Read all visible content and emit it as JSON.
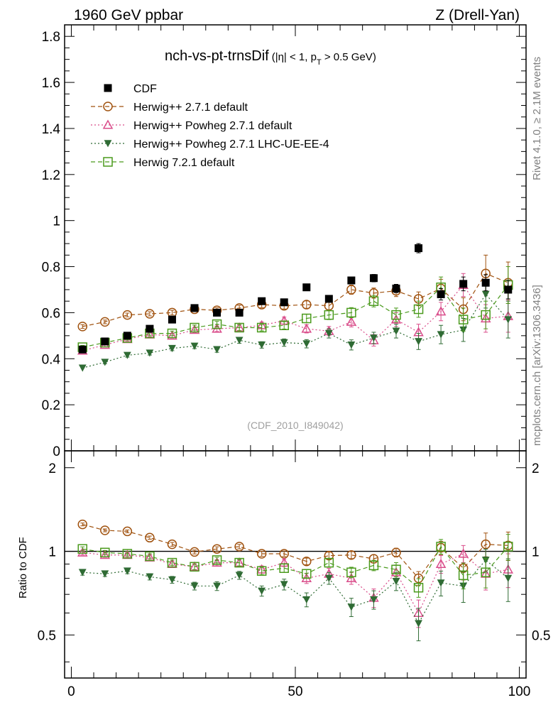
{
  "header": {
    "left": "1960 GeV ppbar",
    "right": "Z (Drell-Yan)"
  },
  "side_labels": {
    "rivet": "Rivet 4.1.0, ≥ 2.1M events",
    "mcplots": "mcplots.cern.ch [arXiv:1306.3436]"
  },
  "chart_data": {
    "type": "scatter",
    "title_main": "nch-vs-pt-trnsDif",
    "title_cut_a": "(|η| < 1, p",
    "title_cut_sub": "T",
    "title_cut_b": " > 0.5 GeV)",
    "watermark": "(CDF_2010_I849042)",
    "xlabel": "",
    "ylabel_main": "",
    "ylabel_ratio": "Ratio to CDF",
    "xlim": [
      -1.5,
      101.5
    ],
    "ylim_main": [
      0,
      1.85
    ],
    "ylim_ratio": [
      0.35,
      2.3
    ],
    "x_ticks": [
      "0",
      "50",
      "100"
    ],
    "y_ticks_main": [
      "0",
      "0.2",
      "0.4",
      "0.6",
      "0.8",
      "1",
      "1.2",
      "1.4",
      "1.6",
      "1.8"
    ],
    "y_ticks_ratio": [
      "0.5",
      "1",
      "2"
    ],
    "x": [
      2.5,
      7.5,
      12.5,
      17.5,
      22.5,
      27.5,
      32.5,
      37.5,
      42.5,
      47.5,
      52.5,
      57.5,
      62.5,
      67.5,
      72.5,
      77.5,
      82.5,
      87.5,
      92.5,
      97.5
    ],
    "series": [
      {
        "name": "CDF",
        "color": "#000000",
        "marker": "square-filled",
        "line": "none",
        "values": [
          0.44,
          0.475,
          0.5,
          0.53,
          0.57,
          0.62,
          0.6,
          0.6,
          0.65,
          0.645,
          0.71,
          0.66,
          0.74,
          0.75,
          0.705,
          0.88,
          0.68,
          0.725,
          0.73,
          0.7
        ],
        "errors": [
          0.01,
          0.01,
          0.01,
          0.01,
          0.01,
          0.01,
          0.01,
          0.01,
          0.012,
          0.012,
          0.013,
          0.014,
          0.015,
          0.016,
          0.018,
          0.02,
          0.025,
          0.03,
          0.035,
          0.04
        ],
        "ratio": [
          1,
          1,
          1,
          1,
          1,
          1,
          1,
          1,
          1,
          1,
          1,
          1,
          1,
          1,
          1,
          1,
          1,
          1,
          1,
          1
        ]
      },
      {
        "name": "Herwig++ 2.7.1 default",
        "color": "#a0520f",
        "marker": "circle-open",
        "line": "dashed",
        "values": [
          0.54,
          0.56,
          0.59,
          0.595,
          0.6,
          0.615,
          0.61,
          0.62,
          0.635,
          0.63,
          0.635,
          0.63,
          0.7,
          0.685,
          0.695,
          0.66,
          0.705,
          0.615,
          0.77,
          0.73
        ],
        "errors": [
          0.008,
          0.008,
          0.008,
          0.009,
          0.01,
          0.01,
          0.011,
          0.012,
          0.013,
          0.014,
          0.016,
          0.018,
          0.02,
          0.022,
          0.025,
          0.03,
          0.04,
          0.05,
          0.08,
          0.09
        ],
        "ratio": [
          1.25,
          1.19,
          1.18,
          1.12,
          1.06,
          0.995,
          1.02,
          1.04,
          0.98,
          0.98,
          0.92,
          0.965,
          0.97,
          0.94,
          0.99,
          0.8,
          1.03,
          0.87,
          1.06,
          1.05
        ]
      },
      {
        "name": "Herwig++ Powheg 2.7.1 default",
        "color": "#d94c8a",
        "marker": "triangle-up-open",
        "line": "dotted",
        "values": [
          0.435,
          0.46,
          0.485,
          0.505,
          0.5,
          0.525,
          0.53,
          0.535,
          0.545,
          0.565,
          0.53,
          0.52,
          0.56,
          0.48,
          0.57,
          0.515,
          0.605,
          0.72,
          0.575,
          0.585
        ],
        "errors": [
          0.008,
          0.008,
          0.009,
          0.01,
          0.01,
          0.011,
          0.012,
          0.013,
          0.014,
          0.016,
          0.018,
          0.02,
          0.022,
          0.025,
          0.03,
          0.035,
          0.04,
          0.05,
          0.06,
          0.07
        ],
        "ratio": [
          0.99,
          0.97,
          0.97,
          0.95,
          0.9,
          0.88,
          0.91,
          0.91,
          0.86,
          0.91,
          0.8,
          0.83,
          0.8,
          0.68,
          0.84,
          0.6,
          0.9,
          0.98,
          0.83,
          0.86
        ]
      },
      {
        "name": "Herwig++ Powheg 2.7.1 LHC-UE-EE-4",
        "color": "#2f6b34",
        "marker": "triangle-down-filled",
        "line": "dotted",
        "values": [
          0.36,
          0.385,
          0.415,
          0.425,
          0.445,
          0.455,
          0.44,
          0.48,
          0.46,
          0.47,
          0.465,
          0.51,
          0.46,
          0.49,
          0.52,
          0.475,
          0.505,
          0.525,
          0.68,
          0.57
        ],
        "errors": [
          0.007,
          0.007,
          0.008,
          0.009,
          0.01,
          0.011,
          0.012,
          0.013,
          0.014,
          0.016,
          0.018,
          0.02,
          0.022,
          0.025,
          0.03,
          0.035,
          0.04,
          0.05,
          0.06,
          0.08
        ],
        "ratio": [
          0.84,
          0.83,
          0.85,
          0.81,
          0.79,
          0.75,
          0.75,
          0.82,
          0.72,
          0.76,
          0.67,
          0.8,
          0.63,
          0.67,
          0.78,
          0.55,
          0.77,
          0.75,
          0.93,
          0.8
        ]
      },
      {
        "name": "Herwig 7.2.1 default",
        "color": "#4a9a1c",
        "marker": "square-open",
        "line": "dashed",
        "values": [
          0.45,
          0.47,
          0.49,
          0.51,
          0.51,
          0.535,
          0.55,
          0.535,
          0.535,
          0.545,
          0.575,
          0.59,
          0.6,
          0.65,
          0.59,
          0.615,
          0.71,
          0.57,
          0.59,
          0.72
        ],
        "errors": [
          0.008,
          0.008,
          0.009,
          0.01,
          0.01,
          0.011,
          0.012,
          0.013,
          0.014,
          0.016,
          0.018,
          0.02,
          0.022,
          0.025,
          0.03,
          0.035,
          0.045,
          0.05,
          0.06,
          0.08
        ],
        "ratio": [
          1.02,
          0.99,
          0.98,
          0.96,
          0.91,
          0.88,
          0.93,
          0.91,
          0.85,
          0.87,
          0.83,
          0.91,
          0.84,
          0.89,
          0.86,
          0.74,
          1.04,
          0.82,
          0.84,
          1.04
        ]
      }
    ]
  }
}
